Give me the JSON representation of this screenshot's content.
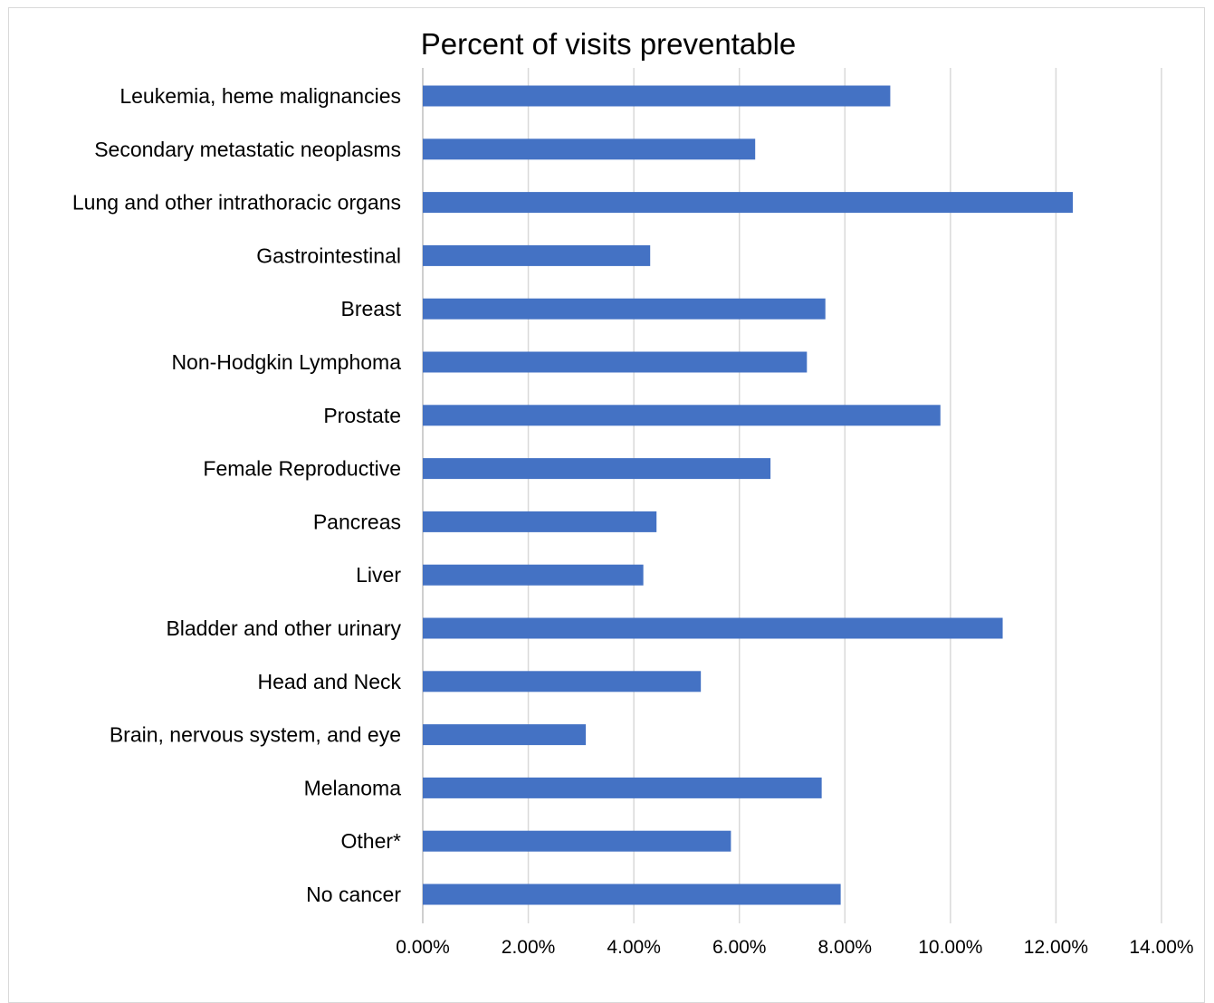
{
  "chart_data": {
    "type": "bar",
    "orientation": "horizontal",
    "title": "Percent of visits preventable",
    "xlabel": "",
    "ylabel": "",
    "categories": [
      "Leukemia, heme malignancies",
      "Secondary metastatic neoplasms",
      "Lung and other intrathoracic organs",
      "Gastrointestinal",
      "Breast",
      "Non-Hodgkin Lymphoma",
      "Prostate",
      "Female Reproductive",
      "Pancreas",
      "Liver",
      "Bladder and other urinary",
      "Head and Neck",
      "Brain, nervous system, and eye",
      "Melanoma",
      "Other*",
      "No cancer"
    ],
    "values": [
      8.86,
      6.3,
      12.32,
      4.31,
      7.63,
      7.28,
      9.81,
      6.59,
      4.43,
      4.18,
      10.99,
      5.27,
      3.09,
      7.56,
      5.84,
      7.92
    ],
    "value_unit": "%",
    "xlim": [
      0,
      14
    ],
    "xticks": [
      "0.00%",
      "2.00%",
      "4.00%",
      "6.00%",
      "8.00%",
      "10.00%",
      "12.00%",
      "14.00%"
    ],
    "grid": "vertical",
    "legend": "none",
    "bar_color": "#4472C4",
    "grid_color": "#D9D9D9"
  }
}
